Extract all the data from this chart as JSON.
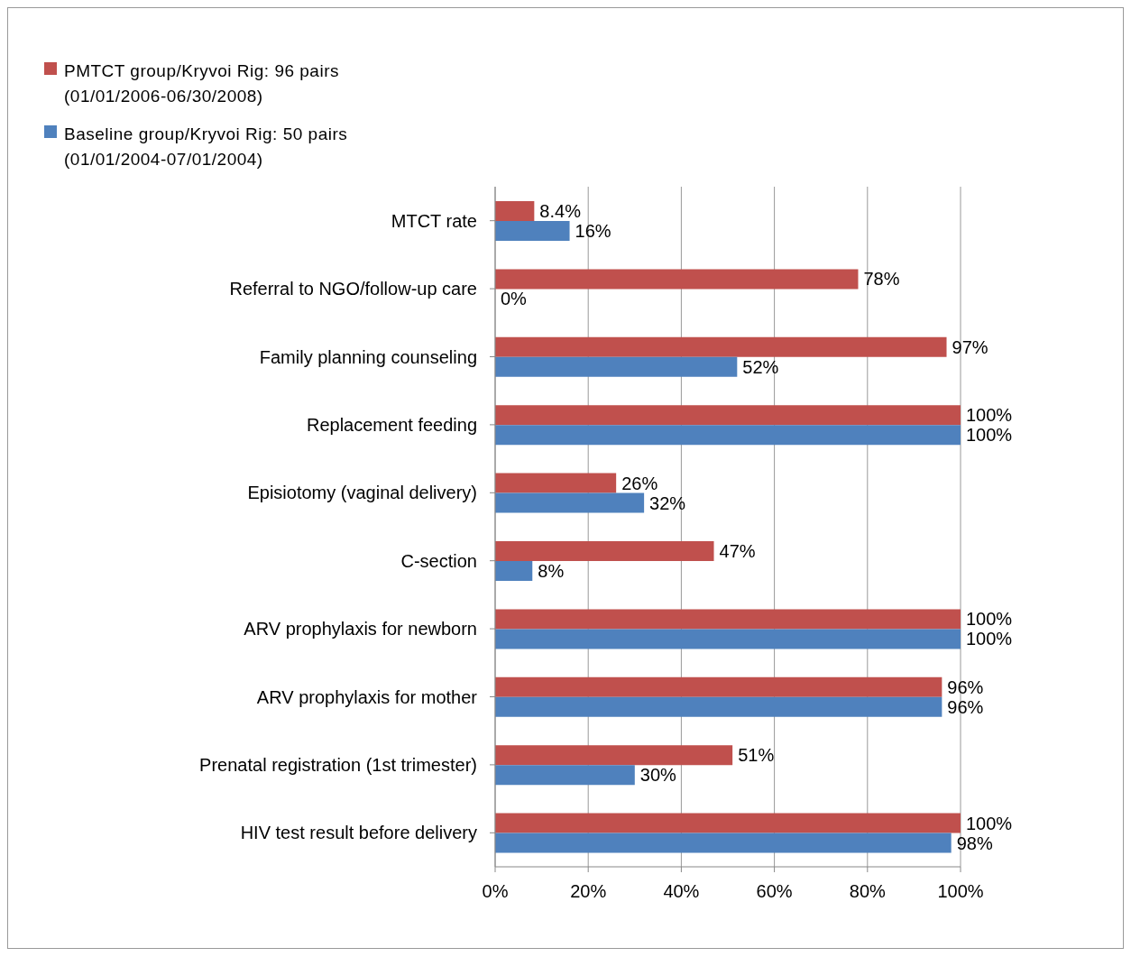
{
  "chart_data": {
    "type": "bar",
    "orientation": "horizontal",
    "categories": [
      "MTCT rate",
      "Referral to NGO/follow-up care",
      "Family planning counseling",
      "Replacement feeding",
      "Episiotomy (vaginal delivery)",
      "C-section",
      "ARV prophylaxis for newborn",
      "ARV prophylaxis for mother",
      "Prenatal registration (1st trimester)",
      "HIV test result before delivery"
    ],
    "series": [
      {
        "name": "PMTCT group/Kryvoi Rig: 96 pairs (01/01/2006-06/30/2008)",
        "color": "#c0504d",
        "values": [
          8.4,
          78,
          97,
          100,
          26,
          47,
          100,
          96,
          51,
          100
        ],
        "value_labels": [
          "8.4%",
          "78%",
          "97%",
          "100%",
          "26%",
          "47%",
          "100%",
          "96%",
          "51%",
          "100%"
        ]
      },
      {
        "name": "Baseline group/Kryvoi Rig: 50 pairs (01/01/2004-07/01/2004)",
        "color": "#4f81bd",
        "values": [
          16,
          0,
          52,
          100,
          32,
          8,
          100,
          96,
          30,
          98
        ],
        "value_labels": [
          "16%",
          "0%",
          "52%",
          "100%",
          "32%",
          "8%",
          "100%",
          "96%",
          "30%",
          "98%"
        ]
      }
    ],
    "xlim": [
      0,
      100
    ],
    "xticks": [
      {
        "value": 0,
        "label": "0%"
      },
      {
        "value": 20,
        "label": "20%"
      },
      {
        "value": 40,
        "label": "40%"
      },
      {
        "value": 60,
        "label": "60%"
      },
      {
        "value": 80,
        "label": "80%"
      },
      {
        "value": 100,
        "label": "100%"
      }
    ],
    "grid": "x",
    "legend": "top left"
  }
}
